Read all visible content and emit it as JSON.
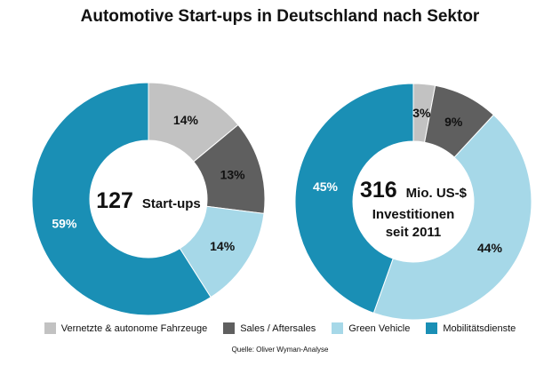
{
  "title": "Automotive Start-ups in Deutschland nach Sektor",
  "source": "Quelle: Oliver Wyman-Analyse",
  "colors": {
    "vernetzte": "#c2c2c2",
    "sales": "#5f5f5f",
    "green": "#a6d8e8",
    "mobilitaet": "#1a8fb5"
  },
  "legend": [
    {
      "label": "Vernetzte & autonome Fahrzeuge",
      "color": "#c2c2c2"
    },
    {
      "label": "Sales / Aftersales",
      "color": "#5f5f5f"
    },
    {
      "label": "Green Vehicle",
      "color": "#a6d8e8"
    },
    {
      "label": "Mobilitätsdienste",
      "color": "#1a8fb5"
    }
  ],
  "chart_data": [
    {
      "type": "pie",
      "title": "",
      "center_number": "127",
      "center_text": "Start-ups",
      "categories": [
        "Vernetzte & autonome Fahrzeuge",
        "Sales / Aftersales",
        "Green Vehicle",
        "Mobilitätsdienste"
      ],
      "values": [
        14,
        13,
        14,
        59
      ],
      "labels": [
        "14%",
        "13%",
        "14%",
        "59%"
      ]
    },
    {
      "type": "pie",
      "title": "",
      "center_number": "316",
      "center_text": "Mio. US-$",
      "center_line2": "Investitionen",
      "center_line3": "seit 2011",
      "categories": [
        "Vernetzte & autonome Fahrzeuge",
        "Sales / Aftersales",
        "Green Vehicle",
        "Mobilitätsdienste"
      ],
      "values": [
        3,
        9,
        44,
        45
      ],
      "labels": [
        "3%",
        "9%",
        "44%",
        "45%"
      ]
    }
  ]
}
